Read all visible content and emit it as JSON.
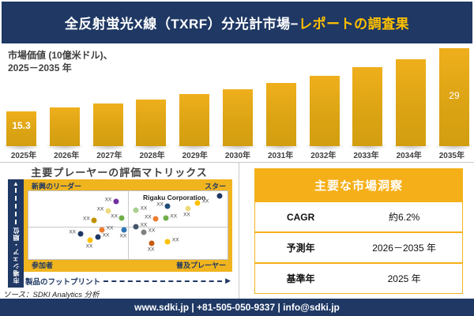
{
  "header": {
    "title_main": "全反射蛍光X線（TXRF）分光計市場−",
    "title_accent": "レポートの調査果"
  },
  "colors": {
    "navy": "#1F3864",
    "gold": "#F5AF19",
    "gold_frame": "#F0B41E",
    "bar_top": "#EFAF1C",
    "bar_bottom": "#D29E10",
    "accent_text": "#FFC000"
  },
  "chart": {
    "label_line1": "市場価値 (10億米ドル)、",
    "label_line2": "2025－2035 年",
    "first_value_label": "15.3",
    "last_value_label": "29"
  },
  "chart_data": {
    "type": "bar",
    "title": "市場価値 (10億米ドル)、2025－2035 年",
    "categories": [
      "2025年",
      "2026年",
      "2027年",
      "2028年",
      "2029年",
      "2030年",
      "2031年",
      "2032年",
      "2033年",
      "2034年",
      "2035年"
    ],
    "values": [
      15.3,
      16.1,
      16.9,
      17.9,
      19.0,
      20.0,
      21.4,
      23.0,
      24.8,
      26.6,
      29
    ],
    "labeled_points": {
      "2025年": "15.3",
      "2035年": "29"
    },
    "ylabel": "市場価値 (10億米ドル)",
    "xlabel": "年",
    "grid": false,
    "legend": false
  },
  "matrix": {
    "title": "主要プレーヤーの評価マトリックス",
    "quadrants": {
      "top_left": "新興のリーダー",
      "top_right": "スター",
      "bottom_left": "参加者",
      "bottom_right": "普及プレーヤー"
    },
    "y_axis": "市場シェア・順位",
    "x_axis": "製品のフットプリント",
    "highlight_company": "Rigaku Corporation",
    "point_label": "XX",
    "points": [
      {
        "x": 44,
        "y": 15,
        "color": "#7030A0",
        "side": "l"
      },
      {
        "x": 40,
        "y": 29,
        "color": "#EDDA7E",
        "side": "l"
      },
      {
        "x": 33,
        "y": 43,
        "color": "#BF9000",
        "side": "l"
      },
      {
        "x": 47,
        "y": 39,
        "color": "#70AD47",
        "side": "l"
      },
      {
        "x": 54,
        "y": 28,
        "color": "#A9D08E",
        "side": "r"
      },
      {
        "x": 70,
        "y": 22,
        "color": "#1F4E79",
        "side": "l"
      },
      {
        "x": 80,
        "y": 25,
        "color": "#EDDA7E",
        "side": "b"
      },
      {
        "x": 85,
        "y": 17,
        "color": "#FFC000",
        "side": "r"
      },
      {
        "x": 96,
        "y": 7,
        "color": "#1F3864",
        "side": "n"
      },
      {
        "x": 64,
        "y": 41,
        "color": "#ED7D31",
        "side": "l"
      },
      {
        "x": 69,
        "y": 40,
        "color": "#70AD47",
        "side": "r"
      },
      {
        "x": 26,
        "y": 63,
        "color": "#1F3864",
        "side": "l"
      },
      {
        "x": 37,
        "y": 57,
        "color": "#ED7D31",
        "side": "r"
      },
      {
        "x": 48,
        "y": 57,
        "color": "#2E75B6",
        "side": "b"
      },
      {
        "x": 31,
        "y": 72,
        "color": "#FFC000",
        "side": "b"
      },
      {
        "x": 35,
        "y": 68,
        "color": "#1F3864",
        "side": "r"
      },
      {
        "x": 54,
        "y": 52,
        "color": "#44546A",
        "side": "r"
      },
      {
        "x": 58,
        "y": 61,
        "color": "#7F7F7F",
        "side": "r"
      },
      {
        "x": 62,
        "y": 77,
        "color": "#C55A11",
        "side": "b"
      },
      {
        "x": 70,
        "y": 74,
        "color": "#FFC000",
        "side": "r"
      }
    ]
  },
  "insights": {
    "title": "主要な市場洞察",
    "rows": [
      {
        "label": "CAGR",
        "value": "約6.2%"
      },
      {
        "label": "予測年",
        "value": "2026－2035 年"
      },
      {
        "label": "基準年",
        "value": "2025 年"
      }
    ]
  },
  "source": "ソース：SDKI Analytics 分析",
  "footer": "www.sdki.jp | +81-505-050-9337 | info@sdki.jp"
}
